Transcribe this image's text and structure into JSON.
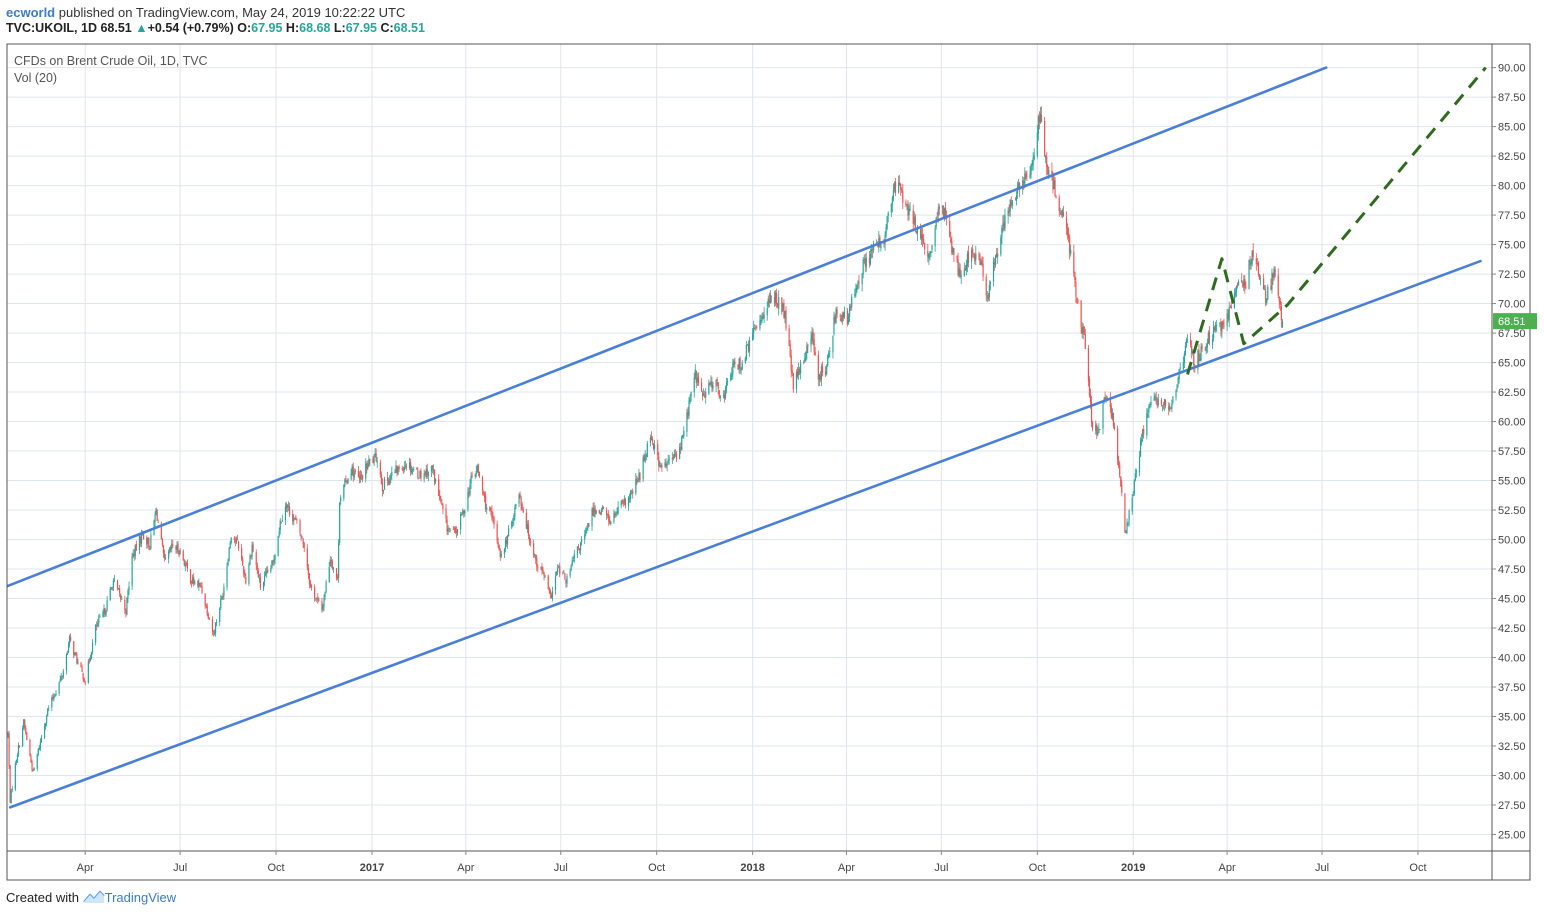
{
  "header": {
    "author": "ecworld",
    "published": "published on TradingView.com, May 24, 2019 10:22:22 UTC",
    "symbol": "TVC:UKOIL, 1D",
    "last": "68.51",
    "change": "+0.54 (+0.79%)",
    "o_label": "O:",
    "o_val": "67.95",
    "h_label": "H:",
    "h_val": "68.68",
    "l_label": "L:",
    "l_val": "67.95",
    "c_label": "C:",
    "c_val": "68.51"
  },
  "legend": {
    "series": "CFDs on Brent Crude Oil, 1D, TVC",
    "volume": "Vol (20)"
  },
  "footer": {
    "created": "Created with",
    "brand": "TradingView"
  },
  "colors": {
    "up": "#26a69a",
    "down": "#ef5350",
    "channel": "#4a7fd9",
    "projection": "#2e6b1f",
    "price_tag": "#4caf50"
  },
  "chart_data": {
    "type": "candlestick",
    "title": "CFDs on Brent Crude Oil, 1D, TVC",
    "symbol": "TVC:UKOIL",
    "y_ticks": [
      "25.00",
      "27.50",
      "30.00",
      "32.50",
      "35.00",
      "37.50",
      "40.00",
      "42.50",
      "45.00",
      "47.50",
      "50.00",
      "52.50",
      "55.00",
      "57.50",
      "60.00",
      "62.50",
      "65.00",
      "67.50",
      "70.00",
      "72.50",
      "75.00",
      "77.50",
      "80.00",
      "82.50",
      "85.00",
      "87.50",
      "90.00"
    ],
    "ylim": [
      23.6,
      92.0
    ],
    "xlim": [
      "2016-01-17",
      "2019-12-11"
    ],
    "x_ticks": [
      {
        "label": "Apr",
        "date": "2016-04-01",
        "bold": false
      },
      {
        "label": "Jul",
        "date": "2016-07-01",
        "bold": false
      },
      {
        "label": "Oct",
        "date": "2016-10-01",
        "bold": false
      },
      {
        "label": "2017",
        "date": "2017-01-01",
        "bold": true
      },
      {
        "label": "Apr",
        "date": "2017-04-01",
        "bold": false
      },
      {
        "label": "Jul",
        "date": "2017-07-01",
        "bold": false
      },
      {
        "label": "Oct",
        "date": "2017-10-01",
        "bold": false
      },
      {
        "label": "2018",
        "date": "2018-01-01",
        "bold": true
      },
      {
        "label": "Apr",
        "date": "2018-04-01",
        "bold": false
      },
      {
        "label": "Jul",
        "date": "2018-07-01",
        "bold": false
      },
      {
        "label": "Oct",
        "date": "2018-10-01",
        "bold": false
      },
      {
        "label": "2019",
        "date": "2019-01-01",
        "bold": true
      },
      {
        "label": "Apr",
        "date": "2019-04-01",
        "bold": false
      },
      {
        "label": "Jul",
        "date": "2019-07-01",
        "bold": false
      },
      {
        "label": "Oct",
        "date": "2019-10-01",
        "bold": false
      }
    ],
    "last_price": "68.51",
    "price_path": [
      [
        "2016-01-18",
        33.5
      ],
      [
        "2016-01-20",
        27.9
      ],
      [
        "2016-01-26",
        31.5
      ],
      [
        "2016-02-02",
        34.5
      ],
      [
        "2016-02-11",
        30.2
      ],
      [
        "2016-02-25",
        35.5
      ],
      [
        "2016-03-10",
        38.5
      ],
      [
        "2016-03-17",
        41.5
      ],
      [
        "2016-03-25",
        39.5
      ],
      [
        "2016-04-01",
        38.0
      ],
      [
        "2016-04-11",
        42.5
      ],
      [
        "2016-04-20",
        44.0
      ],
      [
        "2016-04-28",
        46.5
      ],
      [
        "2016-05-10",
        44.0
      ],
      [
        "2016-05-16",
        48.5
      ],
      [
        "2016-05-26",
        50.5
      ],
      [
        "2016-06-02",
        49.5
      ],
      [
        "2016-06-08",
        52.5
      ],
      [
        "2016-06-16",
        48.0
      ],
      [
        "2016-06-24",
        49.5
      ],
      [
        "2016-07-01",
        49.0
      ],
      [
        "2016-07-12",
        46.5
      ],
      [
        "2016-07-21",
        46.0
      ],
      [
        "2016-08-02",
        42.0
      ],
      [
        "2016-08-11",
        45.5
      ],
      [
        "2016-08-19",
        50.5
      ],
      [
        "2016-08-26",
        49.5
      ],
      [
        "2016-09-02",
        46.5
      ],
      [
        "2016-09-08",
        49.5
      ],
      [
        "2016-09-16",
        46.0
      ],
      [
        "2016-09-28",
        48.0
      ],
      [
        "2016-10-05",
        51.5
      ],
      [
        "2016-10-10",
        53.0
      ],
      [
        "2016-10-20",
        51.5
      ],
      [
        "2016-10-28",
        49.5
      ],
      [
        "2016-11-03",
        46.0
      ],
      [
        "2016-11-14",
        44.0
      ],
      [
        "2016-11-22",
        48.5
      ],
      [
        "2016-11-29",
        46.5
      ],
      [
        "2016-12-01",
        53.5
      ],
      [
        "2016-12-12",
        56.0
      ],
      [
        "2016-12-20",
        55.0
      ],
      [
        "2016-12-29",
        56.5
      ],
      [
        "2017-01-06",
        57.0
      ],
      [
        "2017-01-11",
        54.5
      ],
      [
        "2017-01-20",
        55.5
      ],
      [
        "2017-02-03",
        56.5
      ],
      [
        "2017-02-16",
        55.5
      ],
      [
        "2017-02-28",
        56.0
      ],
      [
        "2017-03-08",
        53.0
      ],
      [
        "2017-03-14",
        51.0
      ],
      [
        "2017-03-22",
        50.5
      ],
      [
        "2017-03-30",
        52.5
      ],
      [
        "2017-04-06",
        55.0
      ],
      [
        "2017-04-12",
        56.0
      ],
      [
        "2017-04-20",
        53.0
      ],
      [
        "2017-04-27",
        51.5
      ],
      [
        "2017-05-05",
        48.5
      ],
      [
        "2017-05-12",
        50.5
      ],
      [
        "2017-05-22",
        54.0
      ],
      [
        "2017-05-31",
        50.5
      ],
      [
        "2017-06-08",
        48.0
      ],
      [
        "2017-06-15",
        47.0
      ],
      [
        "2017-06-21",
        45.0
      ],
      [
        "2017-06-28",
        47.5
      ],
      [
        "2017-07-07",
        46.5
      ],
      [
        "2017-07-14",
        48.5
      ],
      [
        "2017-07-25",
        50.5
      ],
      [
        "2017-08-01",
        52.5
      ],
      [
        "2017-08-10",
        52.5
      ],
      [
        "2017-08-18",
        51.5
      ],
      [
        "2017-08-25",
        52.5
      ],
      [
        "2017-09-05",
        53.5
      ],
      [
        "2017-09-15",
        55.5
      ],
      [
        "2017-09-25",
        59.0
      ],
      [
        "2017-10-05",
        56.0
      ],
      [
        "2017-10-12",
        56.5
      ],
      [
        "2017-10-23",
        57.5
      ],
      [
        "2017-10-31",
        61.0
      ],
      [
        "2017-11-07",
        64.0
      ],
      [
        "2017-11-15",
        62.0
      ],
      [
        "2017-11-24",
        63.5
      ],
      [
        "2017-12-04",
        62.0
      ],
      [
        "2017-12-12",
        64.5
      ],
      [
        "2017-12-22",
        65.0
      ],
      [
        "2018-01-04",
        68.0
      ],
      [
        "2018-01-15",
        70.0
      ],
      [
        "2018-01-24",
        70.5
      ],
      [
        "2018-02-01",
        69.0
      ],
      [
        "2018-02-09",
        63.0
      ],
      [
        "2018-02-16",
        64.5
      ],
      [
        "2018-02-26",
        67.5
      ],
      [
        "2018-03-05",
        64.0
      ],
      [
        "2018-03-13",
        64.5
      ],
      [
        "2018-03-22",
        69.5
      ],
      [
        "2018-04-02",
        68.5
      ],
      [
        "2018-04-11",
        72.0
      ],
      [
        "2018-04-19",
        73.5
      ],
      [
        "2018-04-26",
        74.5
      ],
      [
        "2018-05-07",
        75.5
      ],
      [
        "2018-05-16",
        79.5
      ],
      [
        "2018-05-22",
        80.0
      ],
      [
        "2018-05-31",
        77.5
      ],
      [
        "2018-06-08",
        76.5
      ],
      [
        "2018-06-18",
        73.5
      ],
      [
        "2018-06-28",
        77.5
      ],
      [
        "2018-07-04",
        78.0
      ],
      [
        "2018-07-12",
        74.5
      ],
      [
        "2018-07-19",
        72.5
      ],
      [
        "2018-07-27",
        74.0
      ],
      [
        "2018-08-06",
        74.0
      ],
      [
        "2018-08-15",
        70.5
      ],
      [
        "2018-08-23",
        74.5
      ],
      [
        "2018-09-03",
        78.0
      ],
      [
        "2018-09-12",
        79.5
      ],
      [
        "2018-09-24",
        81.0
      ],
      [
        "2018-10-03",
        86.0
      ],
      [
        "2018-10-11",
        81.0
      ],
      [
        "2018-10-19",
        79.5
      ],
      [
        "2018-10-31",
        75.5
      ],
      [
        "2018-11-08",
        70.5
      ],
      [
        "2018-11-16",
        66.5
      ],
      [
        "2018-11-23",
        59.0
      ],
      [
        "2018-11-30",
        59.5
      ],
      [
        "2018-12-05",
        62.0
      ],
      [
        "2018-12-12",
        60.5
      ],
      [
        "2018-12-18",
        56.5
      ],
      [
        "2018-12-24",
        50.5
      ],
      [
        "2018-12-31",
        53.5
      ],
      [
        "2019-01-08",
        58.0
      ],
      [
        "2019-01-17",
        62.0
      ],
      [
        "2019-01-25",
        61.5
      ],
      [
        "2019-02-06",
        61.5
      ],
      [
        "2019-02-14",
        64.0
      ],
      [
        "2019-02-22",
        67.0
      ],
      [
        "2019-03-01",
        65.0
      ],
      [
        "2019-03-11",
        66.5
      ],
      [
        "2019-03-18",
        67.5
      ],
      [
        "2019-03-28",
        68.0
      ],
      [
        "2019-04-05",
        70.0
      ],
      [
        "2019-04-12",
        71.5
      ],
      [
        "2019-04-18",
        71.5
      ],
      [
        "2019-04-25",
        74.5
      ],
      [
        "2019-05-02",
        72.5
      ],
      [
        "2019-05-08",
        70.5
      ],
      [
        "2019-05-16",
        72.5
      ],
      [
        "2019-05-24",
        68.51
      ]
    ],
    "channel_lines": [
      {
        "name": "upper",
        "from": [
          "2016-01-13",
          45.9
        ],
        "to": [
          "2019-07-05",
          90.0
        ]
      },
      {
        "name": "lower",
        "from": [
          "2016-01-20",
          27.3
        ],
        "to": [
          "2019-11-30",
          73.6
        ]
      }
    ],
    "projection": [
      [
        "2019-02-22",
        64.0
      ],
      [
        "2019-03-27",
        73.8
      ],
      [
        "2019-04-17",
        66.6
      ],
      [
        "2019-05-29",
        69.9
      ],
      [
        "2019-12-05",
        90.0
      ]
    ]
  }
}
